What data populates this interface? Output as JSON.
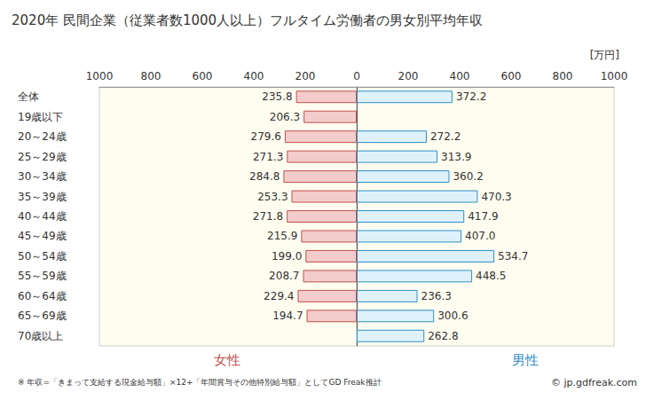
{
  "chart_data": {
    "type": "bar",
    "orientation": "horizontal",
    "title": "2020年 民間企業（従業者数1000人以上）フルタイム労働者の男女別平均年収",
    "xlabel": "[万円]",
    "categories": [
      "全体",
      "19歳以下",
      "20～24歳",
      "25～29歳",
      "30～34歳",
      "35～39歳",
      "40～44歳",
      "45～49歳",
      "50～54歳",
      "55～59歳",
      "60～64歳",
      "65～69歳",
      "70歳以上"
    ],
    "series": [
      {
        "name": "女性",
        "color": "#c0504d",
        "values": [
          235.8,
          206.3,
          279.6,
          271.3,
          284.8,
          253.3,
          271.8,
          215.9,
          199.0,
          208.7,
          229.4,
          194.7,
          null
        ],
        "value_labels": [
          "235.8",
          "206.3",
          "279.6",
          "271.3",
          "284.8",
          "253.3",
          "271.8",
          "215.9",
          "199.0",
          "208.7",
          "229.4",
          "194.7",
          null
        ]
      },
      {
        "name": "男性",
        "color": "#2e8fc8",
        "values": [
          372.2,
          null,
          272.2,
          313.9,
          360.2,
          470.3,
          417.9,
          407.0,
          534.7,
          448.5,
          236.3,
          300.6,
          262.8
        ],
        "value_labels": [
          "372.2",
          null,
          "272.2",
          "313.9",
          "360.2",
          "470.3",
          "417.9",
          "407.0",
          "534.7",
          "448.5",
          "236.3",
          "300.6",
          "262.8"
        ]
      }
    ],
    "xlim": [
      0,
      1000
    ],
    "xticks": [
      0,
      200,
      400,
      600,
      800,
      1000
    ],
    "data_labels": true,
    "grid": false,
    "annotations": [
      "※ 年収=「きまって支給する現金給与額」×12+「年間賞与その他特別給与額」としてGD Freak推計",
      "© jp.gdfreak.com"
    ]
  }
}
